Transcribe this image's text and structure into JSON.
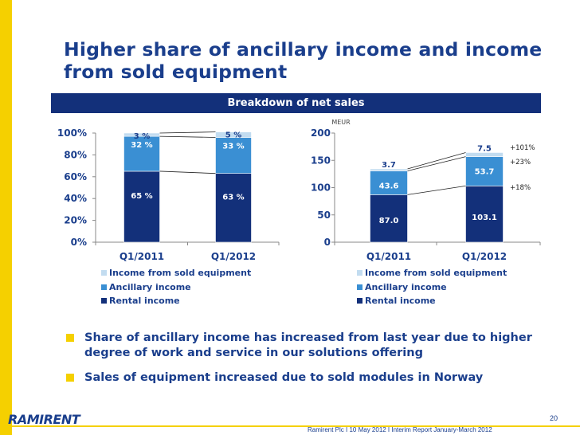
{
  "slide": {
    "title_line1": "Higher share of ancillary income and income",
    "title_line2": "from sold equipment",
    "band_title": "Breakdown of net sales",
    "bullets": [
      "Share of ancillary income has increased from last year due to higher degree of work and service in our solutions offering",
      "Sales of equipment increased due to sold modules in Norway"
    ],
    "logo_text": "RAMIRENT",
    "footer_text": "Ramirent Plc  I 10 May  2012 I Interim Report January-March 2012",
    "page_number": "20"
  },
  "colors": {
    "rental": "#13307A",
    "ancillary": "#3A8FD3",
    "sold": "#C2DCF0",
    "text": "#1A3E8C",
    "accent": "#F5D000"
  },
  "chart_data": [
    {
      "type": "bar",
      "stacked": true,
      "percent": true,
      "categories": [
        "Q1/2011",
        "Q1/2012"
      ],
      "series": [
        {
          "name": "Rental income",
          "values": [
            65,
            63
          ],
          "labels": [
            "65 %",
            "63 %"
          ]
        },
        {
          "name": "Ancillary income",
          "values": [
            32,
            33
          ],
          "labels": [
            "32 %",
            "33 %"
          ]
        },
        {
          "name": "Income from sold equipment",
          "values": [
            3,
            5
          ],
          "labels": [
            "3 %",
            "5 %"
          ]
        }
      ],
      "ylim": [
        0,
        100
      ],
      "yticks": [
        "0%",
        "20%",
        "40%",
        "60%",
        "80%",
        "100%"
      ],
      "legend": "bottom",
      "grid": false
    },
    {
      "type": "bar",
      "stacked": true,
      "unit": "MEUR",
      "categories": [
        "Q1/2011",
        "Q1/2012"
      ],
      "series": [
        {
          "name": "Rental income",
          "values": [
            87.0,
            103.1
          ],
          "labels": [
            "87.0",
            "103.1"
          ],
          "change": "+18%"
        },
        {
          "name": "Ancillary income",
          "values": [
            43.6,
            53.7
          ],
          "labels": [
            "43.6",
            "53.7"
          ],
          "change": "+23%"
        },
        {
          "name": "Income from sold equipment",
          "values": [
            3.7,
            7.5
          ],
          "labels": [
            "3.7",
            "7.5"
          ],
          "change": "+101%"
        }
      ],
      "ylim": [
        0,
        200
      ],
      "yticks": [
        "0",
        "50",
        "100",
        "150",
        "200"
      ],
      "legend": "bottom",
      "grid": false
    }
  ]
}
